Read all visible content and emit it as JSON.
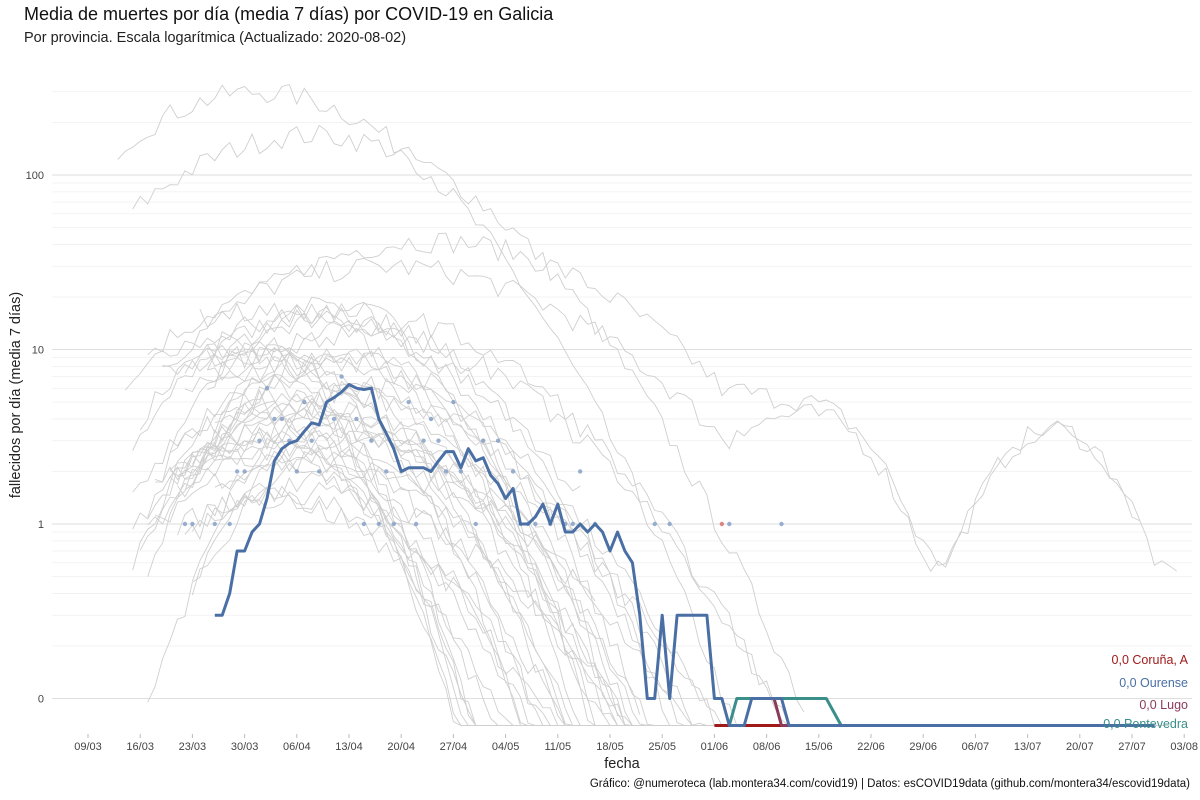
{
  "chart_data": {
    "type": "line",
    "title": "Media de muertes por día (media 7 días) por COVID-19 en Galicia",
    "subtitle": "Por provincia. Escala logarítmica  (Actualizado: 2020-08-02)",
    "xlabel": "fecha",
    "ylabel": "fallecidos por día (media 7 días)",
    "caption": "Gráfico: @numeroteca (lab.montera34.com/covid19) | Datos: esCOVID19data (github.com/montera34/escovid19data)",
    "x_ticks": [
      "09/03",
      "16/03",
      "23/03",
      "30/03",
      "06/04",
      "13/04",
      "20/04",
      "27/04",
      "04/05",
      "11/05",
      "18/05",
      "25/05",
      "01/06",
      "08/06",
      "15/06",
      "22/06",
      "29/06",
      "06/07",
      "13/07",
      "20/07",
      "27/07",
      "03/08"
    ],
    "y_scale": "log",
    "y_ticks": [
      {
        "value": 0.1,
        "label": "0"
      },
      {
        "value": 1,
        "label": "1"
      },
      {
        "value": 10,
        "label": "10"
      },
      {
        "value": 100,
        "label": "100"
      }
    ],
    "ylim": [
      0.07,
      350
    ],
    "xlim": [
      "2020-03-05",
      "2020-08-05"
    ],
    "grid": true,
    "background_series_note": "otras provincias de España (gris)",
    "series": [
      {
        "name": "0,0 Ourense",
        "color": "#4a6fa5",
        "highlight": true,
        "points": [
          [
            "2020-03-26",
            0.3
          ],
          [
            "2020-03-27",
            0.3
          ],
          [
            "2020-03-28",
            0.4
          ],
          [
            "2020-03-29",
            0.7
          ],
          [
            "2020-03-30",
            0.7
          ],
          [
            "2020-03-31",
            0.9
          ],
          [
            "2020-04-01",
            1.0
          ],
          [
            "2020-04-02",
            1.4
          ],
          [
            "2020-04-03",
            2.3
          ],
          [
            "2020-04-04",
            2.7
          ],
          [
            "2020-04-05",
            2.9
          ],
          [
            "2020-04-06",
            3.0
          ],
          [
            "2020-04-07",
            3.4
          ],
          [
            "2020-04-08",
            3.8
          ],
          [
            "2020-04-09",
            3.7
          ],
          [
            "2020-04-10",
            5.0
          ],
          [
            "2020-04-11",
            5.3
          ],
          [
            "2020-04-12",
            5.7
          ],
          [
            "2020-04-13",
            6.3
          ],
          [
            "2020-04-14",
            6.0
          ],
          [
            "2020-04-15",
            5.9
          ],
          [
            "2020-04-16",
            6.0
          ],
          [
            "2020-04-17",
            4.0
          ],
          [
            "2020-04-18",
            3.3
          ],
          [
            "2020-04-19",
            2.7
          ],
          [
            "2020-04-20",
            2.0
          ],
          [
            "2020-04-21",
            2.1
          ],
          [
            "2020-04-22",
            2.1
          ],
          [
            "2020-04-23",
            2.1
          ],
          [
            "2020-04-24",
            2.0
          ],
          [
            "2020-04-25",
            2.3
          ],
          [
            "2020-04-26",
            2.6
          ],
          [
            "2020-04-27",
            2.6
          ],
          [
            "2020-04-28",
            2.1
          ],
          [
            "2020-04-29",
            2.7
          ],
          [
            "2020-04-30",
            2.3
          ],
          [
            "2020-05-01",
            2.4
          ],
          [
            "2020-05-02",
            1.9
          ],
          [
            "2020-05-03",
            1.7
          ],
          [
            "2020-05-04",
            1.4
          ],
          [
            "2020-05-05",
            1.6
          ],
          [
            "2020-05-06",
            1.0
          ],
          [
            "2020-05-07",
            1.0
          ],
          [
            "2020-05-08",
            1.1
          ],
          [
            "2020-05-09",
            1.3
          ],
          [
            "2020-05-10",
            1.0
          ],
          [
            "2020-05-11",
            1.3
          ],
          [
            "2020-05-12",
            0.9
          ],
          [
            "2020-05-13",
            0.9
          ],
          [
            "2020-05-14",
            1.0
          ],
          [
            "2020-05-15",
            0.9
          ],
          [
            "2020-05-16",
            1.0
          ],
          [
            "2020-05-17",
            0.9
          ],
          [
            "2020-05-18",
            0.7
          ],
          [
            "2020-05-19",
            0.9
          ],
          [
            "2020-05-20",
            0.7
          ],
          [
            "2020-05-21",
            0.6
          ],
          [
            "2020-05-22",
            0.3
          ],
          [
            "2020-05-23",
            0.1
          ],
          [
            "2020-05-24",
            0.1
          ],
          [
            "2020-05-25",
            0.3
          ],
          [
            "2020-05-26",
            0.1
          ],
          [
            "2020-05-27",
            0.3
          ],
          [
            "2020-05-28",
            0.3
          ],
          [
            "2020-05-29",
            0.3
          ],
          [
            "2020-05-30",
            0.3
          ],
          [
            "2020-05-31",
            0.3
          ],
          [
            "2020-06-01",
            0.1
          ],
          [
            "2020-06-02",
            0.1
          ],
          [
            "2020-06-03",
            0.07
          ],
          [
            "2020-06-04",
            0.07
          ],
          [
            "2020-06-05",
            0.07
          ],
          [
            "2020-06-06",
            0.1
          ],
          [
            "2020-06-07",
            0.1
          ],
          [
            "2020-06-08",
            0.1
          ],
          [
            "2020-06-09",
            0.1
          ],
          [
            "2020-06-10",
            0.1
          ],
          [
            "2020-06-11",
            0.07
          ],
          [
            "2020-07-30",
            0.07
          ]
        ]
      },
      {
        "name": "0,0 Lugo",
        "color": "#8b3a5a",
        "highlight": true,
        "points": [
          [
            "2020-06-05",
            0.1
          ],
          [
            "2020-06-09",
            0.1
          ],
          [
            "2020-06-10",
            0.07
          ],
          [
            "2020-07-30",
            0.07
          ]
        ]
      },
      {
        "name": "0,0 Pontevedra",
        "color": "#3a8f8a",
        "highlight": true,
        "points": [
          [
            "2020-06-03",
            0.07
          ],
          [
            "2020-06-04",
            0.1
          ],
          [
            "2020-06-16",
            0.1
          ],
          [
            "2020-06-18",
            0.07
          ],
          [
            "2020-07-30",
            0.07
          ]
        ]
      },
      {
        "name": "0,0 Coruña, A",
        "color": "#a01a1a",
        "highlight": true,
        "points": [
          [
            "2020-06-01",
            0.07
          ],
          [
            "2020-07-30",
            0.07
          ]
        ]
      }
    ],
    "daily_points_ourense": [
      [
        "2020-03-22",
        1
      ],
      [
        "2020-03-23",
        1
      ],
      [
        "2020-03-26",
        1
      ],
      [
        "2020-03-28",
        1
      ],
      [
        "2020-03-29",
        2
      ],
      [
        "2020-03-30",
        2
      ],
      [
        "2020-04-01",
        3
      ],
      [
        "2020-04-02",
        6
      ],
      [
        "2020-04-03",
        4
      ],
      [
        "2020-04-04",
        4
      ],
      [
        "2020-04-05",
        3
      ],
      [
        "2020-04-06",
        2
      ],
      [
        "2020-04-07",
        5
      ],
      [
        "2020-04-08",
        3
      ],
      [
        "2020-04-09",
        2
      ],
      [
        "2020-04-11",
        4
      ],
      [
        "2020-04-12",
        7
      ],
      [
        "2020-04-14",
        4
      ],
      [
        "2020-04-15",
        1
      ],
      [
        "2020-04-16",
        3
      ],
      [
        "2020-04-17",
        1
      ],
      [
        "2020-04-18",
        2
      ],
      [
        "2020-04-19",
        1
      ],
      [
        "2020-04-21",
        5
      ],
      [
        "2020-04-22",
        1
      ],
      [
        "2020-04-23",
        3
      ],
      [
        "2020-04-24",
        4
      ],
      [
        "2020-04-25",
        3
      ],
      [
        "2020-04-26",
        2
      ],
      [
        "2020-04-27",
        5
      ],
      [
        "2020-04-28",
        2
      ],
      [
        "2020-04-30",
        1
      ],
      [
        "2020-05-01",
        3
      ],
      [
        "2020-05-03",
        3
      ],
      [
        "2020-05-05",
        2
      ],
      [
        "2020-05-06",
        1
      ],
      [
        "2020-05-07",
        1
      ],
      [
        "2020-05-08",
        1
      ],
      [
        "2020-05-10",
        1
      ],
      [
        "2020-05-12",
        1
      ],
      [
        "2020-05-13",
        1
      ],
      [
        "2020-05-14",
        2
      ],
      [
        "2020-05-16",
        1
      ],
      [
        "2020-05-24",
        1
      ],
      [
        "2020-05-26",
        1
      ],
      [
        "2020-06-03",
        1
      ],
      [
        "2020-06-10",
        1
      ]
    ],
    "daily_point_coruna": [
      "2020-06-02",
      1
    ]
  }
}
